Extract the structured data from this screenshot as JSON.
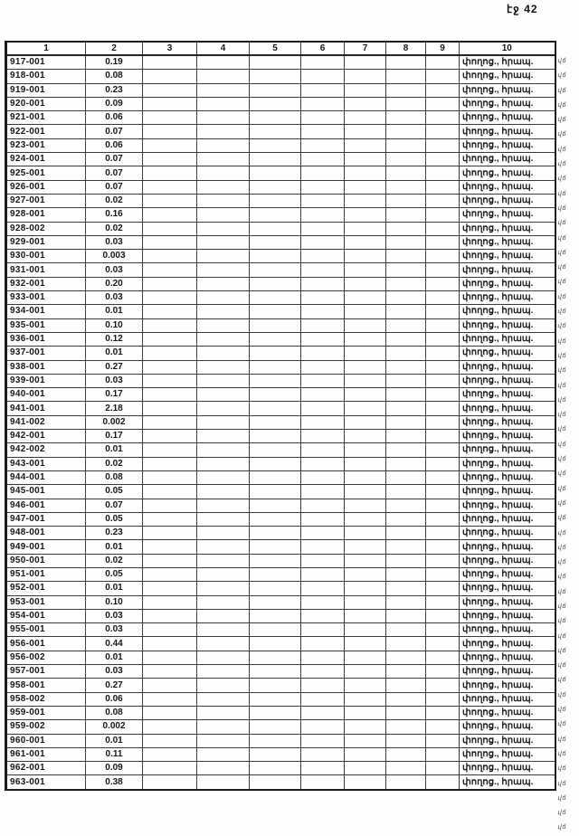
{
  "page": {
    "number_label": "էջ 42"
  },
  "table": {
    "columns": [
      "1",
      "2",
      "3",
      "4",
      "5",
      "6",
      "7",
      "8",
      "9",
      "10"
    ],
    "col10_text": "փողոց., հրապ.",
    "margin_mark": "վճ",
    "rows": [
      {
        "id": "917-001",
        "value": "0.19"
      },
      {
        "id": "918-001",
        "value": "0.08"
      },
      {
        "id": "919-001",
        "value": "0.23"
      },
      {
        "id": "920-001",
        "value": "0.09"
      },
      {
        "id": "921-001",
        "value": "0.06"
      },
      {
        "id": "922-001",
        "value": "0.07"
      },
      {
        "id": "923-001",
        "value": "0.06"
      },
      {
        "id": "924-001",
        "value": "0.07"
      },
      {
        "id": "925-001",
        "value": "0.07"
      },
      {
        "id": "926-001",
        "value": "0.07"
      },
      {
        "id": "927-001",
        "value": "0.02"
      },
      {
        "id": "928-001",
        "value": "0.16"
      },
      {
        "id": "928-002",
        "value": "0.02"
      },
      {
        "id": "929-001",
        "value": "0.03"
      },
      {
        "id": "930-001",
        "value": "0.003"
      },
      {
        "id": "931-001",
        "value": "0.03"
      },
      {
        "id": "932-001",
        "value": "0.20"
      },
      {
        "id": "933-001",
        "value": "0.03"
      },
      {
        "id": "934-001",
        "value": "0.01"
      },
      {
        "id": "935-001",
        "value": "0.10"
      },
      {
        "id": "936-001",
        "value": "0.12"
      },
      {
        "id": "937-001",
        "value": "0.01"
      },
      {
        "id": "938-001",
        "value": "0.27"
      },
      {
        "id": "939-001",
        "value": "0.03"
      },
      {
        "id": "940-001",
        "value": "0.17"
      },
      {
        "id": "941-001",
        "value": "2.18"
      },
      {
        "id": "941-002",
        "value": "0.002"
      },
      {
        "id": "942-001",
        "value": "0.17"
      },
      {
        "id": "942-002",
        "value": "0.01"
      },
      {
        "id": "943-001",
        "value": "0.02"
      },
      {
        "id": "944-001",
        "value": "0.08"
      },
      {
        "id": "945-001",
        "value": "0.05"
      },
      {
        "id": "946-001",
        "value": "0.07"
      },
      {
        "id": "947-001",
        "value": "0.05"
      },
      {
        "id": "948-001",
        "value": "0.23"
      },
      {
        "id": "949-001",
        "value": "0.01"
      },
      {
        "id": "950-001",
        "value": "0.02"
      },
      {
        "id": "951-001",
        "value": "0.05"
      },
      {
        "id": "952-001",
        "value": "0.01"
      },
      {
        "id": "953-001",
        "value": "0.10"
      },
      {
        "id": "954-001",
        "value": "0.03"
      },
      {
        "id": "955-001",
        "value": "0.03"
      },
      {
        "id": "956-001",
        "value": "0.44"
      },
      {
        "id": "956-002",
        "value": "0.01"
      },
      {
        "id": "957-001",
        "value": "0.03"
      },
      {
        "id": "958-001",
        "value": "0.27"
      },
      {
        "id": "958-002",
        "value": "0.06"
      },
      {
        "id": "959-001",
        "value": "0.08"
      },
      {
        "id": "959-002",
        "value": "0.002"
      },
      {
        "id": "960-001",
        "value": "0.01"
      },
      {
        "id": "961-001",
        "value": "0.11"
      },
      {
        "id": "962-001",
        "value": "0.09"
      },
      {
        "id": "963-001",
        "value": "0.38"
      }
    ]
  }
}
